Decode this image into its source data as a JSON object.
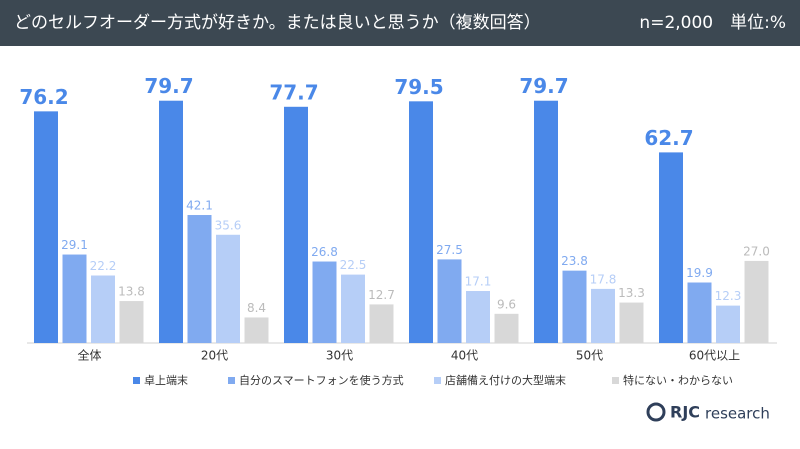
{
  "chart_data": {
    "type": "bar",
    "title": "どのセルフオーダー方式が好きか。または良いと思うか（複数回答）",
    "subtitle": "n=2,000　単位:%",
    "categories": [
      "全体",
      "20代",
      "30代",
      "40代",
      "50代",
      "60代以上"
    ],
    "series": [
      {
        "name": "卓上端末",
        "color": "#4a88e8",
        "values": [
          76.2,
          79.7,
          77.7,
          79.5,
          79.7,
          62.7
        ]
      },
      {
        "name": "自分のスマートフォンを使う方式",
        "color": "#80aaf0",
        "values": [
          29.1,
          42.1,
          26.8,
          27.5,
          23.8,
          19.9
        ]
      },
      {
        "name": "店舗備え付けの大型端末",
        "color": "#b6cef7",
        "values": [
          22.2,
          35.6,
          22.5,
          17.1,
          17.8,
          12.3
        ]
      },
      {
        "name": "特にない・わからない",
        "color": "#d8d8d8",
        "values": [
          13.8,
          8.4,
          12.7,
          9.6,
          13.3,
          27.0
        ],
        "value_labels": [
          "13.8",
          "8.4",
          "12.7",
          "9.6",
          "13.3",
          "27.0"
        ]
      }
    ]
  },
  "logo": {
    "name": "RJC",
    "sub": "research"
  }
}
